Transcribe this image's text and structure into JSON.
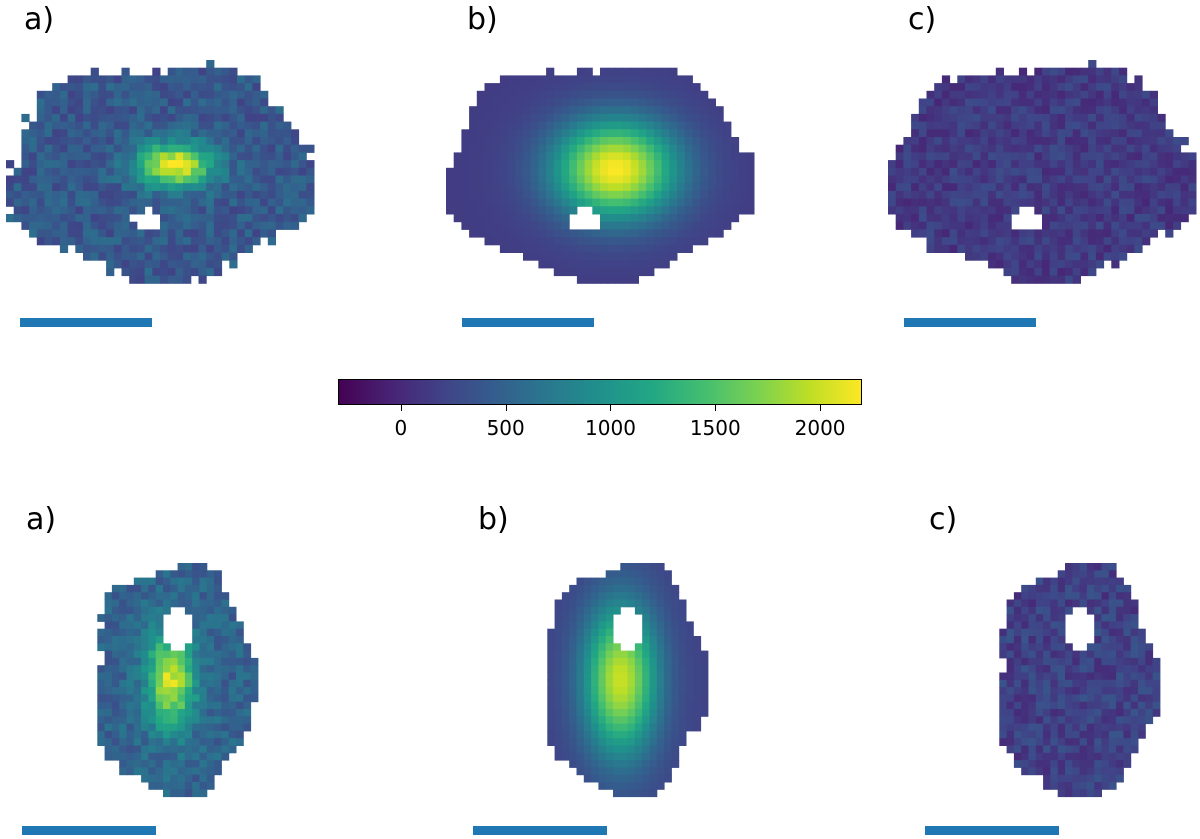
{
  "panel_labels": {
    "top_a": "a)",
    "top_b": "b)",
    "top_c": "c)",
    "bottom_a": "a)",
    "bottom_b": "b)",
    "bottom_c": "c)"
  },
  "colorbar": {
    "colormap": "viridis",
    "range": [
      -300,
      2200
    ],
    "ticks": [
      "0",
      "500",
      "1000",
      "1500",
      "2000"
    ],
    "tick_values": [
      0,
      500,
      1000,
      1500,
      2000
    ]
  },
  "colors": {
    "scalebar": "#1f77b4",
    "mask": "#ffffff",
    "background": "#ffffff"
  }
}
